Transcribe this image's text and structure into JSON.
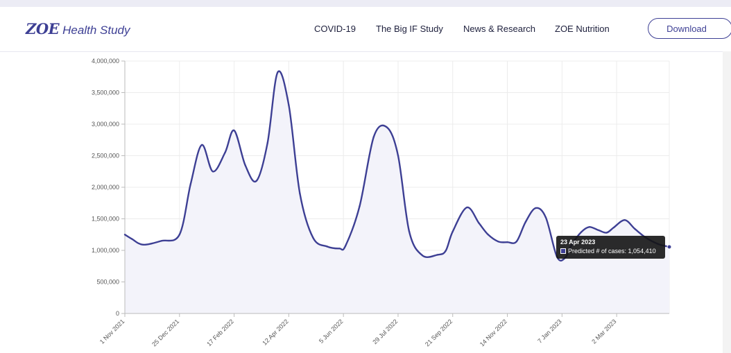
{
  "header": {
    "logo_mark": "ZOE",
    "logo_text": "Health Study",
    "nav": [
      "COVID-19",
      "The Big IF Study",
      "News & Research",
      "ZOE Nutrition"
    ],
    "download_label": "Download"
  },
  "colors": {
    "brand": "#3d3f94",
    "line": "#3d3f94",
    "fill": "#f3f3fa",
    "grid": "#ececec"
  },
  "tooltip": {
    "date": "23 Apr 2023",
    "label": "Predicted # of cases: 1,054,410"
  },
  "chart_data": {
    "type": "area",
    "title": "",
    "xlabel": "",
    "ylabel": "",
    "ylim": [
      0,
      4000000
    ],
    "yticks": [
      0,
      500000,
      1000000,
      1500000,
      2000000,
      2500000,
      3000000,
      3500000,
      4000000
    ],
    "ytick_labels": [
      "0",
      "500,000",
      "1,000,000",
      "1,500,000",
      "2,000,000",
      "2,500,000",
      "3,000,000",
      "3,500,000",
      "4,000,000"
    ],
    "xlim": [
      "2021-11-01",
      "2023-04-23"
    ],
    "xticks": [
      "2021-11-01",
      "2021-12-25",
      "2022-02-17",
      "2022-04-12",
      "2022-06-05",
      "2022-07-29",
      "2022-09-21",
      "2022-11-14",
      "2023-01-07",
      "2023-03-02"
    ],
    "xtick_labels": [
      "1 Nov 2021",
      "25 Dec 2021",
      "17 Feb 2022",
      "12 Apr 2022",
      "5 Jun 2022",
      "29 Jul 2022",
      "21 Sep 2022",
      "14 Nov 2022",
      "7 Jan 2023",
      "2 Mar 2023"
    ],
    "grid": true,
    "series": [
      {
        "name": "Predicted # of cases",
        "x": [
          "2021-11-01",
          "2021-11-08",
          "2021-11-19",
          "2021-12-07",
          "2021-12-25",
          "2022-01-05",
          "2022-01-16",
          "2022-01-27",
          "2022-02-08",
          "2022-02-17",
          "2022-02-28",
          "2022-03-11",
          "2022-03-22",
          "2022-04-01",
          "2022-04-12",
          "2022-04-23",
          "2022-05-06",
          "2022-05-20",
          "2022-06-01",
          "2022-06-07",
          "2022-06-21",
          "2022-07-05",
          "2022-07-18",
          "2022-07-29",
          "2022-08-09",
          "2022-08-22",
          "2022-09-06",
          "2022-09-14",
          "2022-09-21",
          "2022-10-05",
          "2022-10-17",
          "2022-10-26",
          "2022-11-05",
          "2022-11-14",
          "2022-11-23",
          "2022-12-02",
          "2022-12-12",
          "2022-12-22",
          "2023-01-02",
          "2023-01-10",
          "2023-01-17",
          "2023-01-26",
          "2023-02-03",
          "2023-02-12",
          "2023-02-20",
          "2023-02-27",
          "2023-03-10",
          "2023-03-20",
          "2023-03-31",
          "2023-04-12",
          "2023-04-23"
        ],
        "values": [
          1250000,
          1180000,
          1090000,
          1150000,
          1250000,
          2050000,
          2670000,
          2250000,
          2550000,
          2900000,
          2350000,
          2100000,
          2700000,
          3820000,
          3300000,
          1900000,
          1200000,
          1060000,
          1030000,
          1070000,
          1700000,
          2800000,
          2950000,
          2500000,
          1300000,
          920000,
          930000,
          990000,
          1300000,
          1680000,
          1430000,
          1250000,
          1140000,
          1130000,
          1140000,
          1450000,
          1670000,
          1520000,
          900000,
          880000,
          1100000,
          1290000,
          1370000,
          1320000,
          1280000,
          1360000,
          1480000,
          1340000,
          1200000,
          1100000,
          1054410
        ]
      }
    ]
  }
}
